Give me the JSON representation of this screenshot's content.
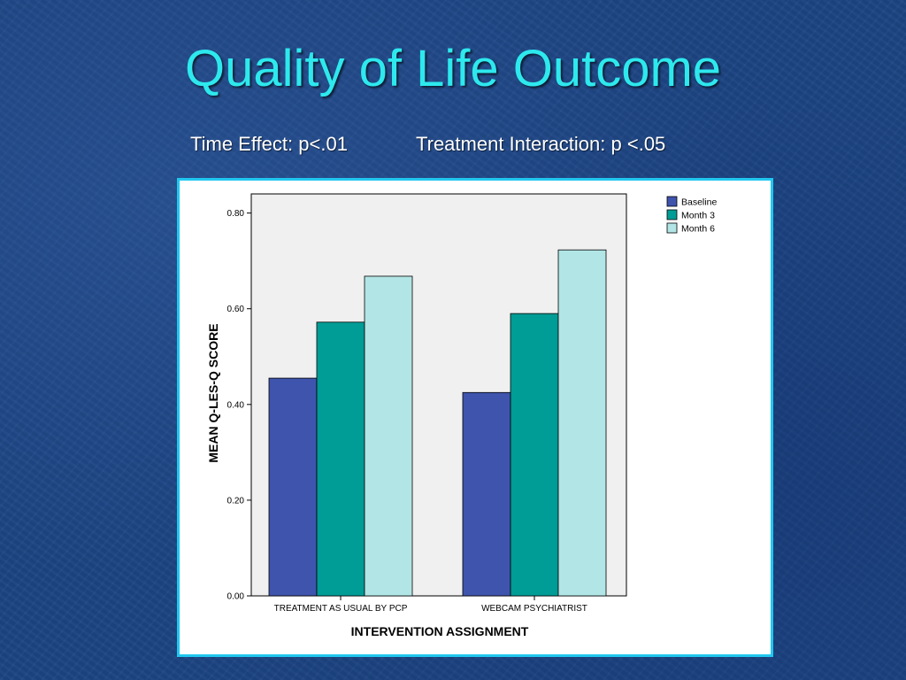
{
  "slide": {
    "title": "Quality of Life Outcome",
    "subtitle_left": "Time Effect: p<.01",
    "subtitle_right": "Treatment Interaction: p <.05"
  },
  "colors": {
    "title": "#2de9ee",
    "frame_border": "#20c7ef",
    "plot_bg": "#f0f0f0"
  },
  "chart_data": {
    "type": "bar",
    "title": "",
    "xlabel": "INTERVENTION ASSIGNMENT",
    "ylabel": "MEAN Q-LES-Q SCORE",
    "ylim": [
      0,
      0.84
    ],
    "yticks": [
      "0.00",
      "0.20",
      "0.40",
      "0.60",
      "0.80"
    ],
    "ytick_values": [
      0,
      0.2,
      0.4,
      0.6,
      0.8
    ],
    "categories": [
      "TREATMENT AS USUAL BY PCP",
      "WEBCAM PSYCHIATRIST"
    ],
    "series": [
      {
        "name": "Baseline",
        "color": "#3f54ad",
        "values": [
          0.455,
          0.425
        ]
      },
      {
        "name": "Month 3",
        "color": "#009c96",
        "values": [
          0.572,
          0.59
        ]
      },
      {
        "name": "Month 6",
        "color": "#b2e5e5",
        "values": [
          0.668,
          0.723
        ]
      }
    ],
    "grid": false,
    "legend_position": "top-right"
  }
}
